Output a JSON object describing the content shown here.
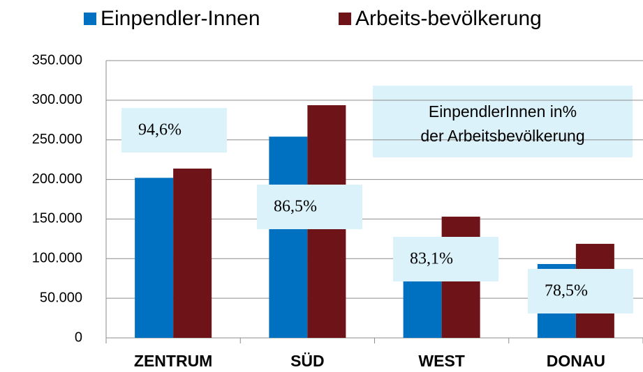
{
  "chart_data": {
    "type": "bar",
    "categories": [
      "ZENTRUM",
      "SÜD",
      "WEST",
      "DONAU"
    ],
    "series": [
      {
        "name": "Einpendler-Innen",
        "color": "#0070c0",
        "values": [
          202000,
          254000,
          127100,
          93200
        ]
      },
      {
        "name": "Arbeits-bevölkerung",
        "color": "#6e1419",
        "values": [
          213700,
          293700,
          153000,
          118700
        ]
      }
    ],
    "ylim": [
      0,
      350000
    ],
    "yticks": [
      {
        "value": 0,
        "label": "0"
      },
      {
        "value": 50000,
        "label": "50.000"
      },
      {
        "value": 100000,
        "label": "100.000"
      },
      {
        "value": 150000,
        "label": "150.000"
      },
      {
        "value": 200000,
        "label": "200.000"
      },
      {
        "value": 250000,
        "label": "250.000"
      },
      {
        "value": 300000,
        "label": "300.000"
      },
      {
        "value": 350000,
        "label": "350.000"
      }
    ],
    "grid": true,
    "legend": "top",
    "annotations": [
      "94,6%",
      "86,5%",
      "83,1%",
      "78,5%"
    ],
    "note": [
      "EinpendlerInnen in%",
      "der Arbeitsbevölkerung"
    ]
  }
}
